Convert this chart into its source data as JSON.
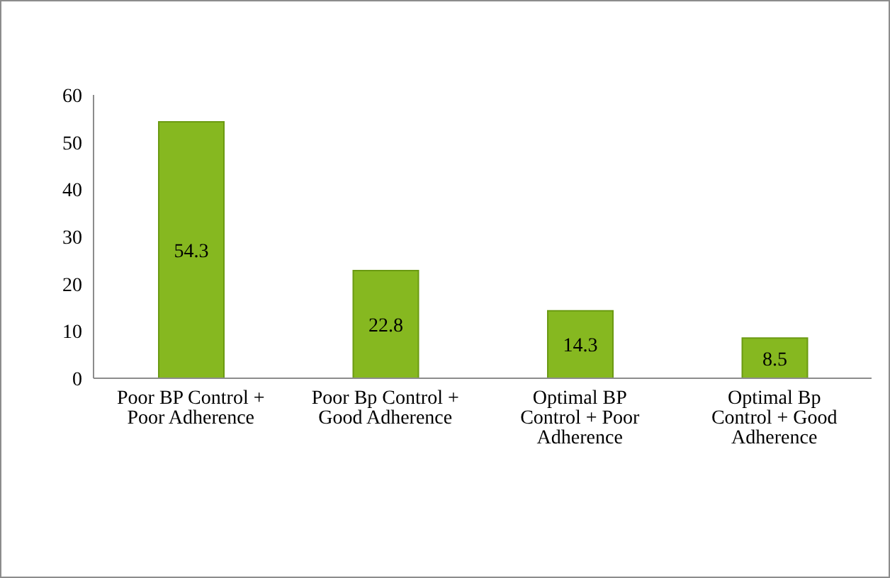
{
  "chart_data": {
    "type": "bar",
    "categories": [
      "Poor BP Control + Poor Adherence",
      "Poor Bp Control + Good Adherence",
      "Optimal BP Control + Poor Adherence",
      "Optimal Bp Control + Good Adherence"
    ],
    "values": [
      54.3,
      22.8,
      14.3,
      8.5
    ],
    "color": "#86b820",
    "ylim": [
      0,
      60
    ],
    "yticks": [
      0,
      10,
      20,
      30,
      40,
      50,
      60
    ],
    "grid": false,
    "legend": false,
    "data_labels": true
  }
}
